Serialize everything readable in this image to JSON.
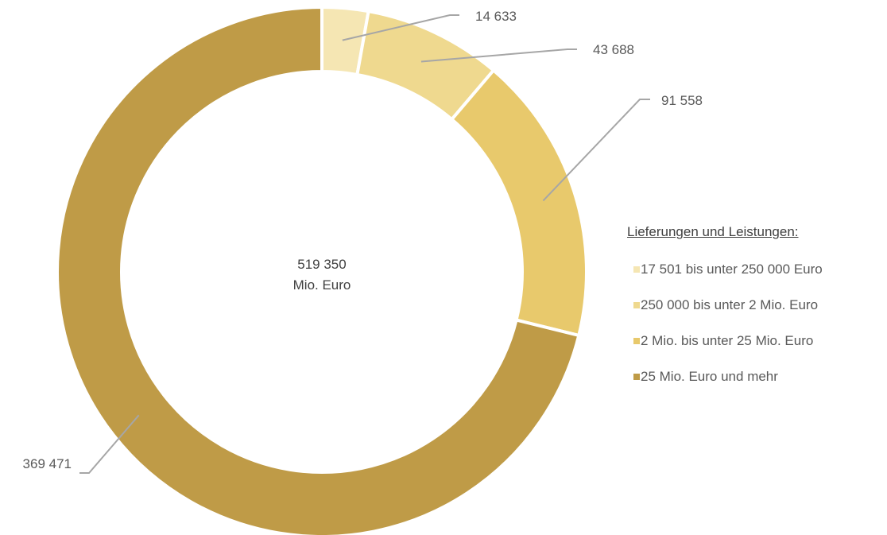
{
  "chart_data": {
    "type": "donut",
    "center_value": "519 350",
    "center_unit": "Mio. Euro",
    "legend_title": "Lieferungen und Leistungen:",
    "legend_position": "right",
    "total": 519350,
    "series": [
      {
        "label": "17 501 bis unter 250 000 Euro",
        "value": 14633,
        "value_label": "14 633",
        "color": "#f5e6b3"
      },
      {
        "label": "250 000 bis unter 2 Mio. Euro",
        "value": 43688,
        "value_label": "43 688",
        "color": "#efd98f"
      },
      {
        "label": "2 Mio. bis unter 25 Mio. Euro",
        "value": 91558,
        "value_label": "91 558",
        "color": "#e8c96c"
      },
      {
        "label": "25 Mio. Euro und mehr",
        "value": 369471,
        "value_label": "369 471",
        "color": "#bf9b47"
      }
    ]
  }
}
